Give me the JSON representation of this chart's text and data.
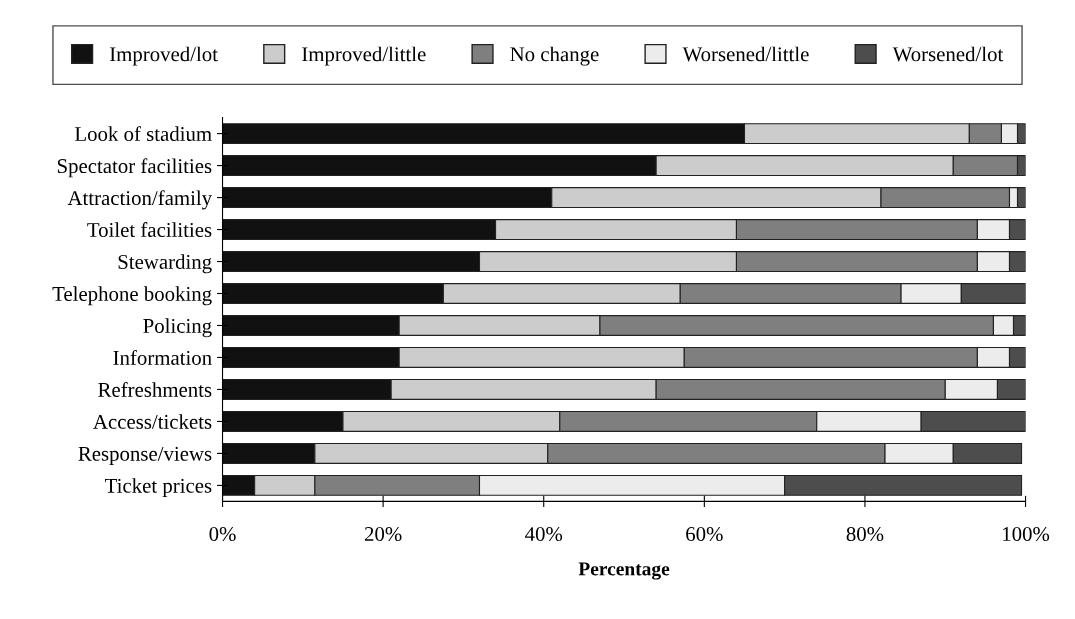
{
  "chart_data": {
    "type": "bar",
    "orientation": "horizontal",
    "stacked": true,
    "xlabel": "Percentage",
    "categories": [
      "Look of stadium",
      "Spectator facilities",
      "Attraction/family",
      "Toilet facilities",
      "Stewarding",
      "Telephone booking",
      "Policing",
      "Information",
      "Refreshments",
      "Access/tickets",
      "Response/views",
      "Ticket prices"
    ],
    "series": [
      {
        "name": "Improved/lot",
        "color": "#111111",
        "values": [
          65,
          54,
          41,
          34,
          32,
          27.5,
          22,
          22,
          21,
          15,
          11.5,
          4
        ]
      },
      {
        "name": "Improved/little",
        "color": "#cccccc",
        "values": [
          28,
          37,
          41,
          30,
          32,
          29.5,
          25,
          35.5,
          33,
          27,
          29,
          7.5
        ]
      },
      {
        "name": "No change",
        "color": "#7f7f7f",
        "values": [
          4,
          8,
          16,
          30,
          30,
          27.5,
          49,
          36.5,
          36,
          32,
          42,
          20.5
        ]
      },
      {
        "name": "Worsened/little",
        "color": "#ececec",
        "values": [
          2,
          0,
          1,
          4,
          4,
          7.5,
          2.5,
          4,
          6.5,
          13,
          8.5,
          38
        ]
      },
      {
        "name": "Worsened/lot",
        "color": "#4d4d4d",
        "values": [
          1,
          1,
          1,
          2,
          2,
          8,
          1.5,
          2,
          3.5,
          13,
          8.5,
          29.5
        ]
      }
    ],
    "xlim": [
      0,
      100
    ],
    "xticks": [
      {
        "value": 0,
        "label": "0%"
      },
      {
        "value": 20,
        "label": "20%"
      },
      {
        "value": 40,
        "label": "40%"
      },
      {
        "value": 60,
        "label": "60%"
      },
      {
        "value": 80,
        "label": "80%"
      },
      {
        "value": 100,
        "label": "100%"
      }
    ],
    "grid": false,
    "legend": "top"
  }
}
